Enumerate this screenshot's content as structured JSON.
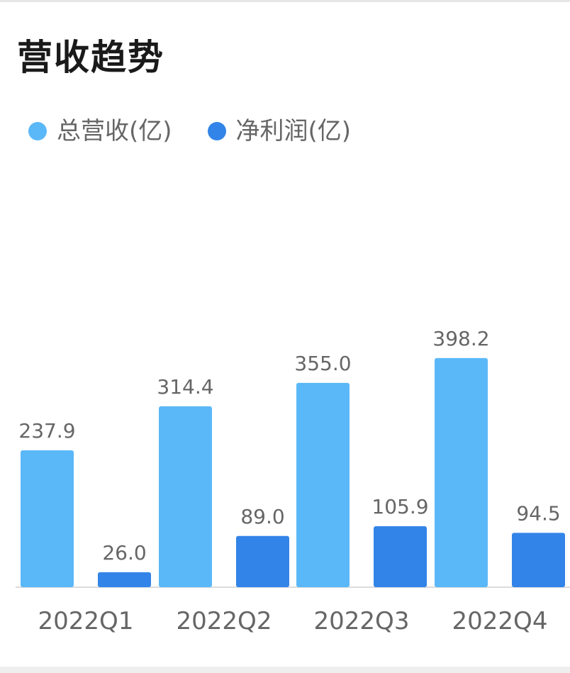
{
  "title": "营收趋势",
  "legend": [
    {
      "label": "总营收(亿)",
      "color": "#5BB8F8"
    },
    {
      "label": "净利润(亿)",
      "color": "#3384E8"
    }
  ],
  "chart_data": {
    "type": "bar",
    "title": "营收趋势",
    "categories": [
      "2022Q1",
      "2022Q2",
      "2022Q3",
      "2022Q4"
    ],
    "series": [
      {
        "name": "总营收(亿)",
        "color": "#5BB8F8",
        "values": [
          237.9,
          314.4,
          355.0,
          398.2
        ],
        "labels": [
          "237.9",
          "314.4",
          "355.0",
          "398.2"
        ]
      },
      {
        "name": "净利润(亿)",
        "color": "#3384E8",
        "values": [
          26.0,
          89.0,
          105.9,
          94.5
        ],
        "labels": [
          "26.0",
          "89.0",
          "105.9",
          "94.5"
        ]
      }
    ],
    "grid": false,
    "legend_position": "top-left",
    "axis_color": "#dcdcdc",
    "label_color": "#666666"
  }
}
